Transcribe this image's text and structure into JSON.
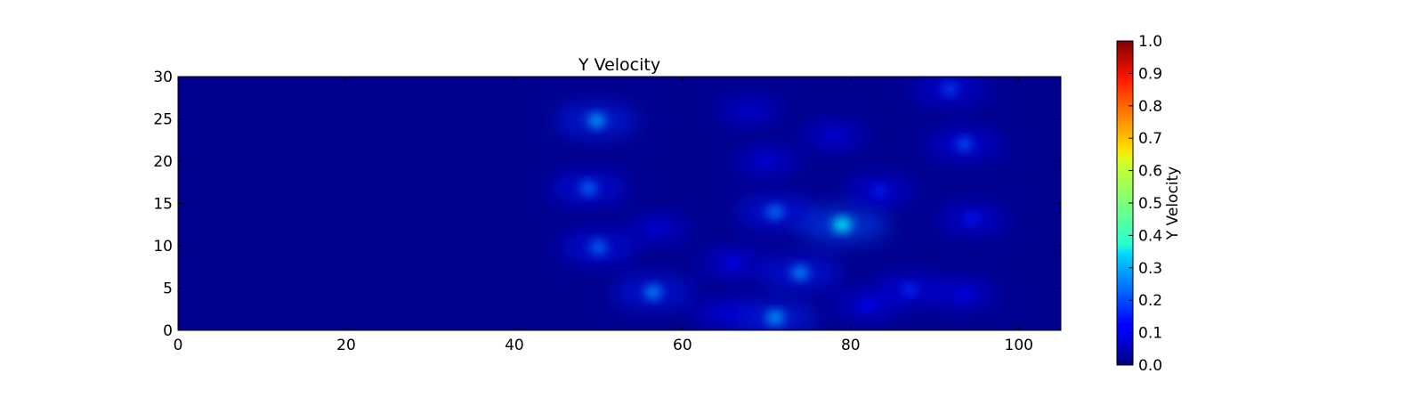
{
  "chart_data": {
    "type": "heatmap",
    "title": "Y Velocity",
    "xlabel": "",
    "ylabel": "",
    "xlim": [
      0,
      105
    ],
    "ylim": [
      0,
      30
    ],
    "x_ticks": [
      0,
      20,
      40,
      60,
      80,
      100
    ],
    "y_ticks": [
      0,
      5,
      10,
      15,
      20,
      25,
      30
    ],
    "grid": false,
    "colormap": "jet",
    "background_value": 0.0,
    "colorbar": {
      "label": "Y Velocity",
      "range": [
        0.0,
        1.0
      ],
      "ticks": [
        "0.0",
        "0.1",
        "0.2",
        "0.3",
        "0.4",
        "0.5",
        "0.6",
        "0.7",
        "0.8",
        "0.9",
        "1.0"
      ]
    },
    "features": [
      {
        "x": 49.8,
        "y": 24.8,
        "value": 0.3
      },
      {
        "x": 48.8,
        "y": 16.8,
        "value": 0.25
      },
      {
        "x": 50.0,
        "y": 9.8,
        "value": 0.25
      },
      {
        "x": 56.5,
        "y": 4.5,
        "value": 0.28
      },
      {
        "x": 71.0,
        "y": 1.5,
        "value": 0.3
      },
      {
        "x": 74.0,
        "y": 6.8,
        "value": 0.28
      },
      {
        "x": 79.0,
        "y": 12.5,
        "value": 0.38
      },
      {
        "x": 71.0,
        "y": 14.0,
        "value": 0.26
      },
      {
        "x": 93.5,
        "y": 22.0,
        "value": 0.22
      },
      {
        "x": 91.8,
        "y": 28.5,
        "value": 0.2
      },
      {
        "x": 94.5,
        "y": 13.2,
        "value": 0.15
      },
      {
        "x": 93.5,
        "y": 4.3,
        "value": 0.12
      },
      {
        "x": 87.0,
        "y": 4.8,
        "value": 0.18
      },
      {
        "x": 83.5,
        "y": 16.5,
        "value": 0.16
      },
      {
        "x": 70.0,
        "y": 20.0,
        "value": 0.1
      },
      {
        "x": 78.0,
        "y": 23.0,
        "value": 0.09
      },
      {
        "x": 68.0,
        "y": 26.0,
        "value": 0.07
      },
      {
        "x": 57.0,
        "y": 12.0,
        "value": 0.08
      },
      {
        "x": 66.0,
        "y": 8.0,
        "value": 0.12
      },
      {
        "x": 82.0,
        "y": 3.0,
        "value": 0.12
      },
      {
        "x": 65.0,
        "y": 2.0,
        "value": 0.09
      }
    ]
  }
}
